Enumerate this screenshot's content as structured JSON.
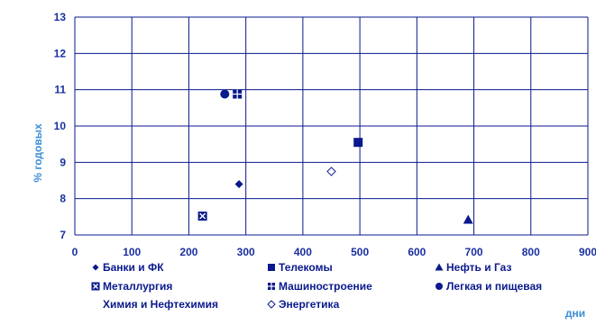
{
  "chart_data": {
    "type": "scatter",
    "xlabel": "дни",
    "ylabel": "% годовых",
    "xlim": [
      0,
      900
    ],
    "ylim": [
      7,
      13
    ],
    "xticks": [
      "0",
      "100",
      "200",
      "300",
      "400",
      "500",
      "600",
      "700",
      "800",
      "900"
    ],
    "yticks": [
      "7",
      "8",
      "9",
      "10",
      "11",
      "12",
      "13"
    ],
    "grid": true,
    "legend_position": "bottom",
    "colors": {
      "marker": "#0a1a8c",
      "grid": "#0a1a8c",
      "axis_title": "#3b8fd6",
      "tick": "#1a2fa0"
    },
    "series": [
      {
        "name": "Банки и ФК",
        "marker": "diamond-filled",
        "points": [
          {
            "x": 288,
            "y": 8.4
          }
        ]
      },
      {
        "name": "Телекомы",
        "marker": "square-filled",
        "points": [
          {
            "x": 497,
            "y": 9.55
          }
        ]
      },
      {
        "name": "Нефть и Газ",
        "marker": "triangle-filled",
        "points": [
          {
            "x": 690,
            "y": 7.42
          }
        ]
      },
      {
        "name": "Металлургия",
        "marker": "square-x",
        "points": [
          {
            "x": 224,
            "y": 7.52
          }
        ]
      },
      {
        "name": "Машиностроение",
        "marker": "square-grid",
        "points": [
          {
            "x": 285,
            "y": 10.88
          }
        ]
      },
      {
        "name": "Легкая и пищевая",
        "marker": "circle-filled",
        "points": [
          {
            "x": 263,
            "y": 10.88
          }
        ]
      },
      {
        "name": "Химия и Нефтехимия",
        "marker": "none",
        "points": []
      },
      {
        "name": "Энергетика",
        "marker": "diamond-open",
        "points": [
          {
            "x": 450,
            "y": 8.75
          }
        ]
      }
    ]
  }
}
